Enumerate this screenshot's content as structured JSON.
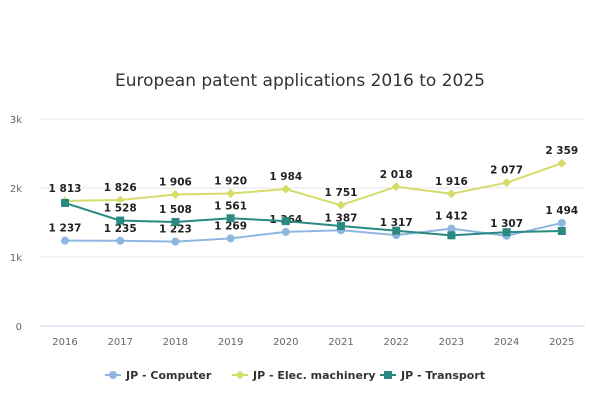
{
  "chart_data": {
    "type": "line",
    "title": "European patent applications 2016 to 2025",
    "categories": [
      "2016",
      "2017",
      "2018",
      "2019",
      "2020",
      "2021",
      "2022",
      "2023",
      "2024",
      "2025"
    ],
    "ylim": [
      0,
      3000
    ],
    "yticks": [
      {
        "v": 0,
        "label": "0"
      },
      {
        "v": 1000,
        "label": "1k"
      },
      {
        "v": 2000,
        "label": "2k"
      },
      {
        "v": 3000,
        "label": "3k"
      }
    ],
    "grid": true,
    "legend": "bottom",
    "series": [
      {
        "name": "JP - Computer",
        "color": "#8fb6e0",
        "marker": "circle",
        "values": [
          1237,
          1235,
          1223,
          1269,
          1364,
          1387,
          1317,
          1412,
          1307,
          1494
        ],
        "labels": [
          "1 237",
          "1 235",
          "1 223",
          "1 269",
          "1 364",
          "1 387",
          "1 317",
          "1 412",
          "1 307",
          "1 494"
        ]
      },
      {
        "name": "JP - Elec. machinery",
        "color": "#d6dc6a",
        "marker": "diamond",
        "values": [
          1813,
          1826,
          1906,
          1920,
          1984,
          1751,
          2018,
          1916,
          2077,
          2359
        ],
        "labels": [
          "1 813",
          "1 826",
          "1 906",
          "1 920",
          "1 984",
          "1 751",
          "2 018",
          "1 916",
          "2 077",
          "2 359"
        ]
      },
      {
        "name": "JP - Transport",
        "color": "#2a8a82",
        "marker": "square",
        "values": [
          1783,
          1528,
          1508,
          1561,
          1520,
          1449,
          1381,
          1314,
          1360,
          1377
        ],
        "labels": [
          "",
          "1 528",
          "1 508",
          "1 561",
          "",
          "",
          "",
          "",
          "",
          ""
        ]
      }
    ]
  }
}
